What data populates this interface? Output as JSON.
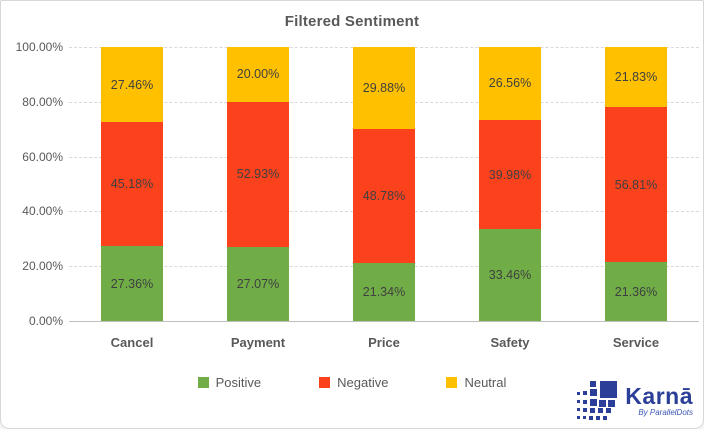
{
  "title": "Filtered Sentiment",
  "chart_data": {
    "type": "bar",
    "stacked": true,
    "orientation": "vertical",
    "title": "Filtered Sentiment",
    "categories": [
      "Cancel",
      "Payment",
      "Price",
      "Safety",
      "Service"
    ],
    "series": [
      {
        "name": "Positive",
        "color": "#70AD47",
        "values": [
          27.36,
          27.07,
          21.34,
          33.46,
          21.36
        ]
      },
      {
        "name": "Negative",
        "color": "#FB421C",
        "values": [
          45.18,
          52.93,
          48.78,
          39.98,
          56.81
        ]
      },
      {
        "name": "Neutral",
        "color": "#FFC000",
        "values": [
          27.46,
          20.0,
          29.88,
          26.56,
          21.83
        ]
      }
    ],
    "data_label_format": "0.00%",
    "xlabel": "",
    "ylabel": "",
    "y_axis": {
      "min": 0,
      "max": 100,
      "step": 20,
      "tick_labels": [
        "0.00%",
        "20.00%",
        "40.00%",
        "60.00%",
        "80.00%",
        "100.00%"
      ]
    },
    "grid": "horizontal-dashed",
    "legend_position": "bottom"
  },
  "colors": {
    "title_text": "#595959",
    "axis_text": "#595959",
    "data_label_text": "#404040",
    "gridline": "#D9D9D9",
    "axis_line": "#BFBFBF",
    "brand_blue": "#2B3F98"
  },
  "branding": {
    "name": "Karnā",
    "byline": "By ParallelDots"
  }
}
